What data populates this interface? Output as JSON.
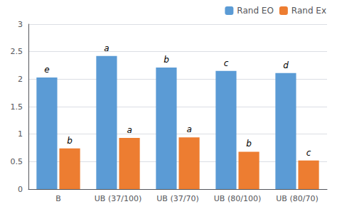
{
  "chart_data": {
    "type": "bar",
    "categories": [
      "B",
      "UB (37/100)",
      "UB (37/70)",
      "UB (80/100)",
      "UB (80/70)"
    ],
    "series": [
      {
        "name": "Rand EO",
        "color": "#5B9BD5",
        "values": [
          2.03,
          2.42,
          2.21,
          2.15,
          2.11
        ],
        "annotations": [
          "e",
          "a",
          "b",
          "c",
          "d"
        ]
      },
      {
        "name": "Rand Ex",
        "color": "#ED7D31",
        "values": [
          0.74,
          0.93,
          0.94,
          0.68,
          0.52
        ],
        "annotations": [
          "b",
          "a",
          "a",
          "b",
          "c"
        ]
      }
    ],
    "ylim": [
      0,
      3
    ],
    "yticks": [
      0,
      0.5,
      1,
      1.5,
      2,
      2.5,
      3
    ],
    "grid": true,
    "legend": "upper right"
  }
}
